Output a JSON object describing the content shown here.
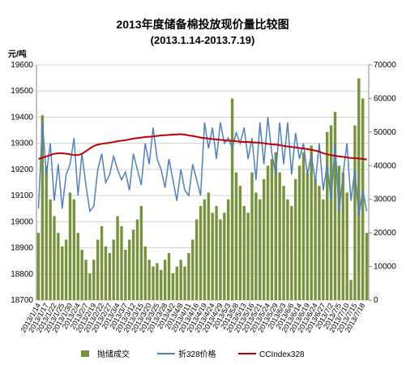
{
  "chart_data": {
    "type": "bar_line",
    "title": "2013年度储备棉投放现价量比较图",
    "subtitle": "(2013.1.14-2013.7.19)",
    "y_label": "元/吨",
    "categories": [
      "2013/1/14",
      null,
      "2013/1/17",
      null,
      "2013/1/22",
      null,
      "2013/1/25",
      null,
      "2013/1/30",
      null,
      "2013/2/4",
      null,
      "2013/2/7",
      null,
      "2013/2/19",
      null,
      "2013/2/22",
      null,
      "2013/2/27",
      null,
      "2013/3/4",
      null,
      "2013/3/7",
      null,
      "2013/3/12",
      null,
      "2013/3/15",
      null,
      "2013/3/20",
      null,
      "2013/3/25",
      null,
      "2013/3/28",
      null,
      "2013/4/2",
      null,
      "2013/4/8",
      null,
      "2013/4/11",
      null,
      "2013/4/16",
      null,
      "2013/4/19",
      null,
      "2013/4/24",
      null,
      "2013/4/29",
      null,
      "2013/5/3",
      null,
      "2013/5/8",
      null,
      "2013/5/13",
      null,
      "2013/5/16",
      null,
      "2013/5/21",
      null,
      "2013/5/24",
      null,
      "2013/5/29",
      null,
      "2013/6/3",
      null,
      "2013/6/6",
      null,
      "2013/6/14",
      null,
      "2013/6/19",
      null,
      "2013/6/24",
      null,
      "2013/6/27",
      null,
      "2013/7/2",
      null,
      "2013/7/5",
      null,
      "2013/7/10",
      null,
      "2013/7/15",
      null,
      "2013/7/18",
      null
    ],
    "series": [
      {
        "name": "抛储成交",
        "type": "bar",
        "axis": "y2",
        "color": "#77933c",
        "values": [
          20000,
          55000,
          40000,
          30000,
          25000,
          20000,
          16000,
          18000,
          32000,
          30000,
          20000,
          15000,
          12000,
          8000,
          12000,
          18000,
          22000,
          16000,
          14000,
          18000,
          25000,
          22000,
          15000,
          18000,
          21000,
          24000,
          28000,
          16000,
          12000,
          10000,
          11000,
          9000,
          12000,
          14000,
          8000,
          10000,
          12000,
          10000,
          14000,
          18000,
          24000,
          28000,
          30000,
          32000,
          26000,
          28000,
          24000,
          26000,
          30000,
          60000,
          38000,
          34000,
          28000,
          26000,
          38000,
          32000,
          30000,
          36000,
          40000,
          42000,
          44000,
          38000,
          34000,
          30000,
          28000,
          36000,
          40000,
          44000,
          38000,
          46000,
          36000,
          34000,
          30000,
          50000,
          52000,
          56000,
          40000,
          38000,
          32000,
          6000,
          52000,
          66000,
          60000,
          20000
        ]
      },
      {
        "name": "折328价格",
        "type": "line",
        "color": "#4f81bd",
        "values": [
          19050,
          19380,
          19180,
          19300,
          19080,
          19220,
          19050,
          19180,
          19220,
          19320,
          19100,
          19260,
          19140,
          19040,
          19060,
          19200,
          19260,
          19150,
          19180,
          19250,
          19200,
          19160,
          19190,
          19120,
          19260,
          19200,
          19140,
          19300,
          19220,
          19360,
          19240,
          19200,
          19130,
          19240,
          19160,
          19080,
          19200,
          19120,
          19100,
          19220,
          19160,
          19100,
          19380,
          19280,
          19360,
          19240,
          19380,
          19300,
          19320,
          19280,
          19340,
          19300,
          19360,
          19240,
          19320,
          19160,
          19380,
          19220,
          19400,
          19260,
          19180,
          19380,
          19220,
          19380,
          19180,
          19340,
          19240,
          19300,
          19180,
          19260,
          19150,
          19300,
          19120,
          19220,
          19080,
          19300,
          19040,
          19180,
          19300,
          19080,
          19200,
          19020,
          19120,
          19040
        ]
      },
      {
        "name": "CCIndex328",
        "type": "line",
        "color": "#c00000",
        "values": [
          19240,
          19245,
          19250,
          19255,
          19260,
          19262,
          19262,
          19260,
          19258,
          19255,
          19255,
          19260,
          19270,
          19280,
          19290,
          19295,
          19298,
          19300,
          19302,
          19305,
          19308,
          19310,
          19312,
          19315,
          19318,
          19320,
          19322,
          19324,
          19325,
          19326,
          19328,
          19330,
          19331,
          19332,
          19333,
          19334,
          19335,
          19333,
          19330,
          19328,
          19325,
          19322,
          19320,
          19318,
          19316,
          19315,
          19313,
          19312,
          19310,
          19310,
          19308,
          19306,
          19305,
          19305,
          19304,
          19303,
          19302,
          19300,
          19298,
          19296,
          19295,
          19293,
          19290,
          19288,
          19286,
          19284,
          19282,
          19280,
          19278,
          19275,
          19272,
          19268,
          19262,
          19258,
          19255,
          19252,
          19250,
          19248,
          19246,
          19244,
          19243,
          19242,
          19240,
          19238
        ]
      }
    ],
    "ylim": [
      18700,
      19600
    ],
    "yticks": [
      18700,
      18800,
      18900,
      19000,
      19100,
      19200,
      19300,
      19400,
      19500,
      19600
    ],
    "y2lim": [
      0,
      70000
    ],
    "y2ticks": [
      0,
      10000,
      20000,
      30000,
      40000,
      50000,
      60000,
      70000
    ],
    "grid": true,
    "legend": "bottom"
  }
}
